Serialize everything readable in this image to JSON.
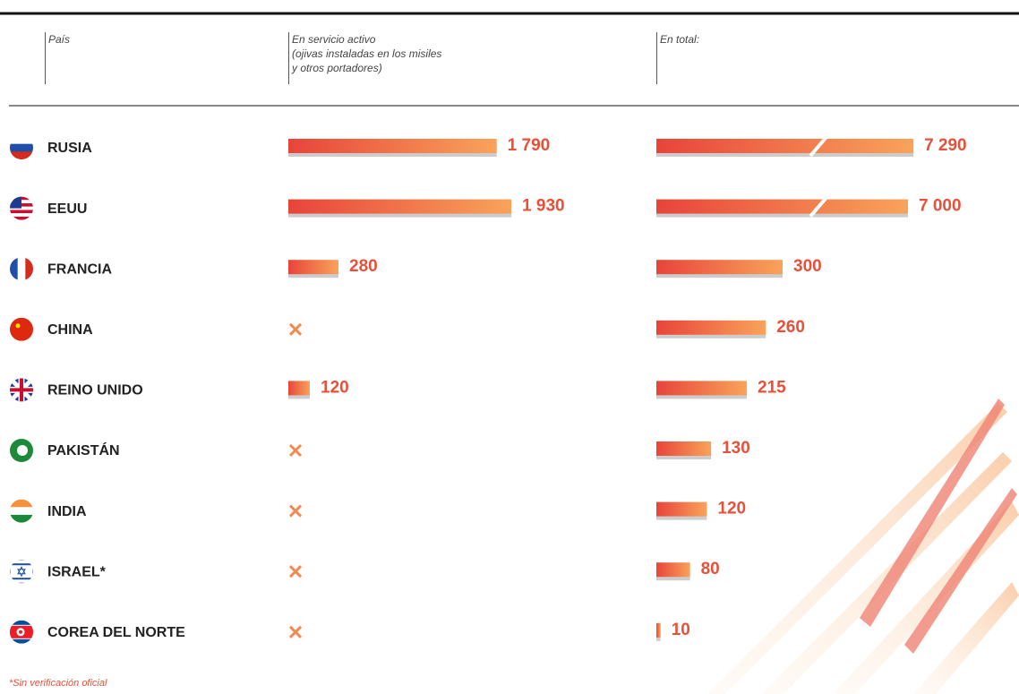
{
  "chart_data": {
    "type": "bar",
    "category_label": "País",
    "categories": [
      "RUSIA",
      "EEUU",
      "FRANCIA",
      "CHINA",
      "REINO UNIDO",
      "PAKISTÁN",
      "INDIA",
      "ISRAEL*",
      "COREA DEL NORTE"
    ],
    "series": [
      {
        "name": "En servicio activo\n(ojivas instaladas en los misiles\ny otros portadores)",
        "color": "#e8443a",
        "values": [
          1790,
          1930,
          280,
          null,
          120,
          null,
          null,
          null,
          null
        ],
        "value_labels": [
          "1 790",
          "1 930",
          "280",
          null,
          "120",
          null,
          null,
          null,
          null
        ]
      },
      {
        "name": "En total:",
        "color": "#e8443a",
        "values": [
          7290,
          7000,
          300,
          260,
          215,
          130,
          120,
          80,
          10
        ],
        "value_labels": [
          "7 290",
          "7 000",
          "300",
          "260",
          "215",
          "130",
          "120",
          "80",
          "10"
        ]
      }
    ],
    "footnote": "*Sin verificación oficial"
  }
}
